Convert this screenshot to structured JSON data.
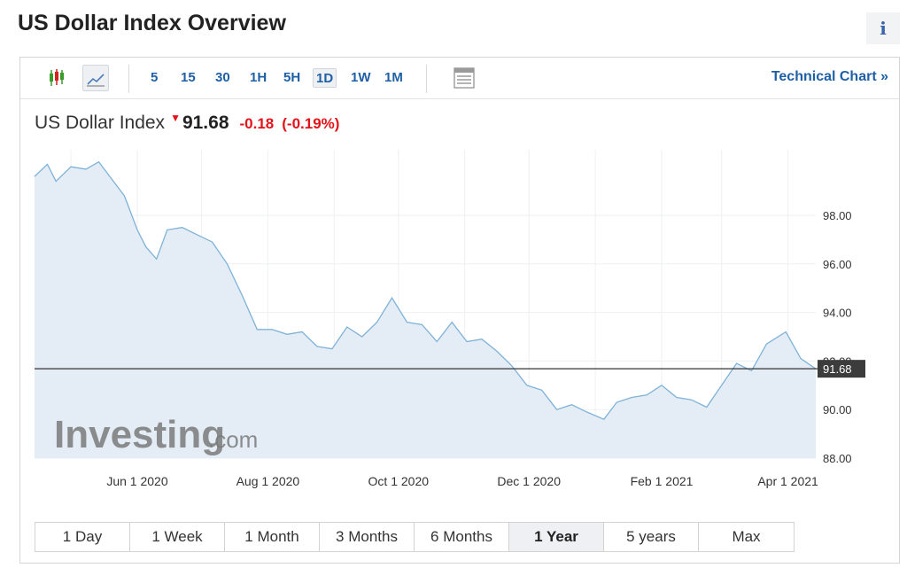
{
  "page": {
    "title": "US Dollar Index Overview",
    "info_label": "i"
  },
  "toolbar": {
    "intervals": [
      "5",
      "15",
      "30",
      "1H",
      "5H",
      "1D",
      "1W",
      "1M"
    ],
    "active_interval": "1D",
    "technical_link": "Technical Chart »"
  },
  "quote": {
    "name": "US Dollar Index",
    "price": "91.68",
    "change": "-0.18",
    "change_pct": "(-0.19%)",
    "direction": "down"
  },
  "watermark": {
    "brand": "Investing",
    "suffix": ".com"
  },
  "ranges": [
    "1 Day",
    "1 Week",
    "1 Month",
    "3 Months",
    "6 Months",
    "1 Year",
    "5 years",
    "Max"
  ],
  "active_range": "1 Year",
  "colors": {
    "accent": "#1f5fa6",
    "negative": "#e3131a",
    "line": "#7fb2d8",
    "area": "#e4edf5",
    "price_tag": "#3c3c3c"
  },
  "chart_data": {
    "type": "area",
    "x": [
      "2020-04-14",
      "2020-04-20",
      "2020-04-24",
      "2020-05-01",
      "2020-05-08",
      "2020-05-14",
      "2020-05-20",
      "2020-05-26",
      "2020-06-01",
      "2020-06-05",
      "2020-06-10",
      "2020-06-15",
      "2020-06-22",
      "2020-06-29",
      "2020-07-06",
      "2020-07-13",
      "2020-07-20",
      "2020-07-27",
      "2020-08-03",
      "2020-08-10",
      "2020-08-17",
      "2020-08-24",
      "2020-08-31",
      "2020-09-07",
      "2020-09-14",
      "2020-09-21",
      "2020-09-28",
      "2020-10-05",
      "2020-10-12",
      "2020-10-19",
      "2020-10-26",
      "2020-11-02",
      "2020-11-09",
      "2020-11-16",
      "2020-11-23",
      "2020-11-30",
      "2020-12-07",
      "2020-12-14",
      "2020-12-21",
      "2020-12-28",
      "2021-01-05",
      "2021-01-11",
      "2021-01-18",
      "2021-01-25",
      "2021-02-01",
      "2021-02-08",
      "2021-02-15",
      "2021-02-22",
      "2021-03-01",
      "2021-03-08",
      "2021-03-15",
      "2021-03-22",
      "2021-03-31",
      "2021-04-07",
      "2021-04-14"
    ],
    "values": [
      99.6,
      100.1,
      99.4,
      100.0,
      99.9,
      100.2,
      99.5,
      98.8,
      97.4,
      96.7,
      96.2,
      97.4,
      97.5,
      97.2,
      96.9,
      96.0,
      94.7,
      93.3,
      93.3,
      93.1,
      93.2,
      92.6,
      92.5,
      93.4,
      93.0,
      93.6,
      94.6,
      93.6,
      93.5,
      92.8,
      93.6,
      92.8,
      92.9,
      92.4,
      91.8,
      91.0,
      90.8,
      90.0,
      90.2,
      89.9,
      89.6,
      90.3,
      90.5,
      90.6,
      91.0,
      90.5,
      90.4,
      90.1,
      91.0,
      91.9,
      91.6,
      92.7,
      93.2,
      92.1,
      91.68
    ],
    "x_ticks": [
      "Jun 1 2020",
      "Aug 1 2020",
      "Oct 1 2020",
      "Dec 1 2020",
      "Feb 1 2021",
      "Apr 1 2021"
    ],
    "y_ticks": [
      "98.00",
      "96.00",
      "94.00",
      "92.00",
      "90.00",
      "88.00"
    ],
    "ylim": [
      88,
      100.7
    ],
    "current_value": 91.68,
    "current_label": "91.68",
    "grid": true
  }
}
